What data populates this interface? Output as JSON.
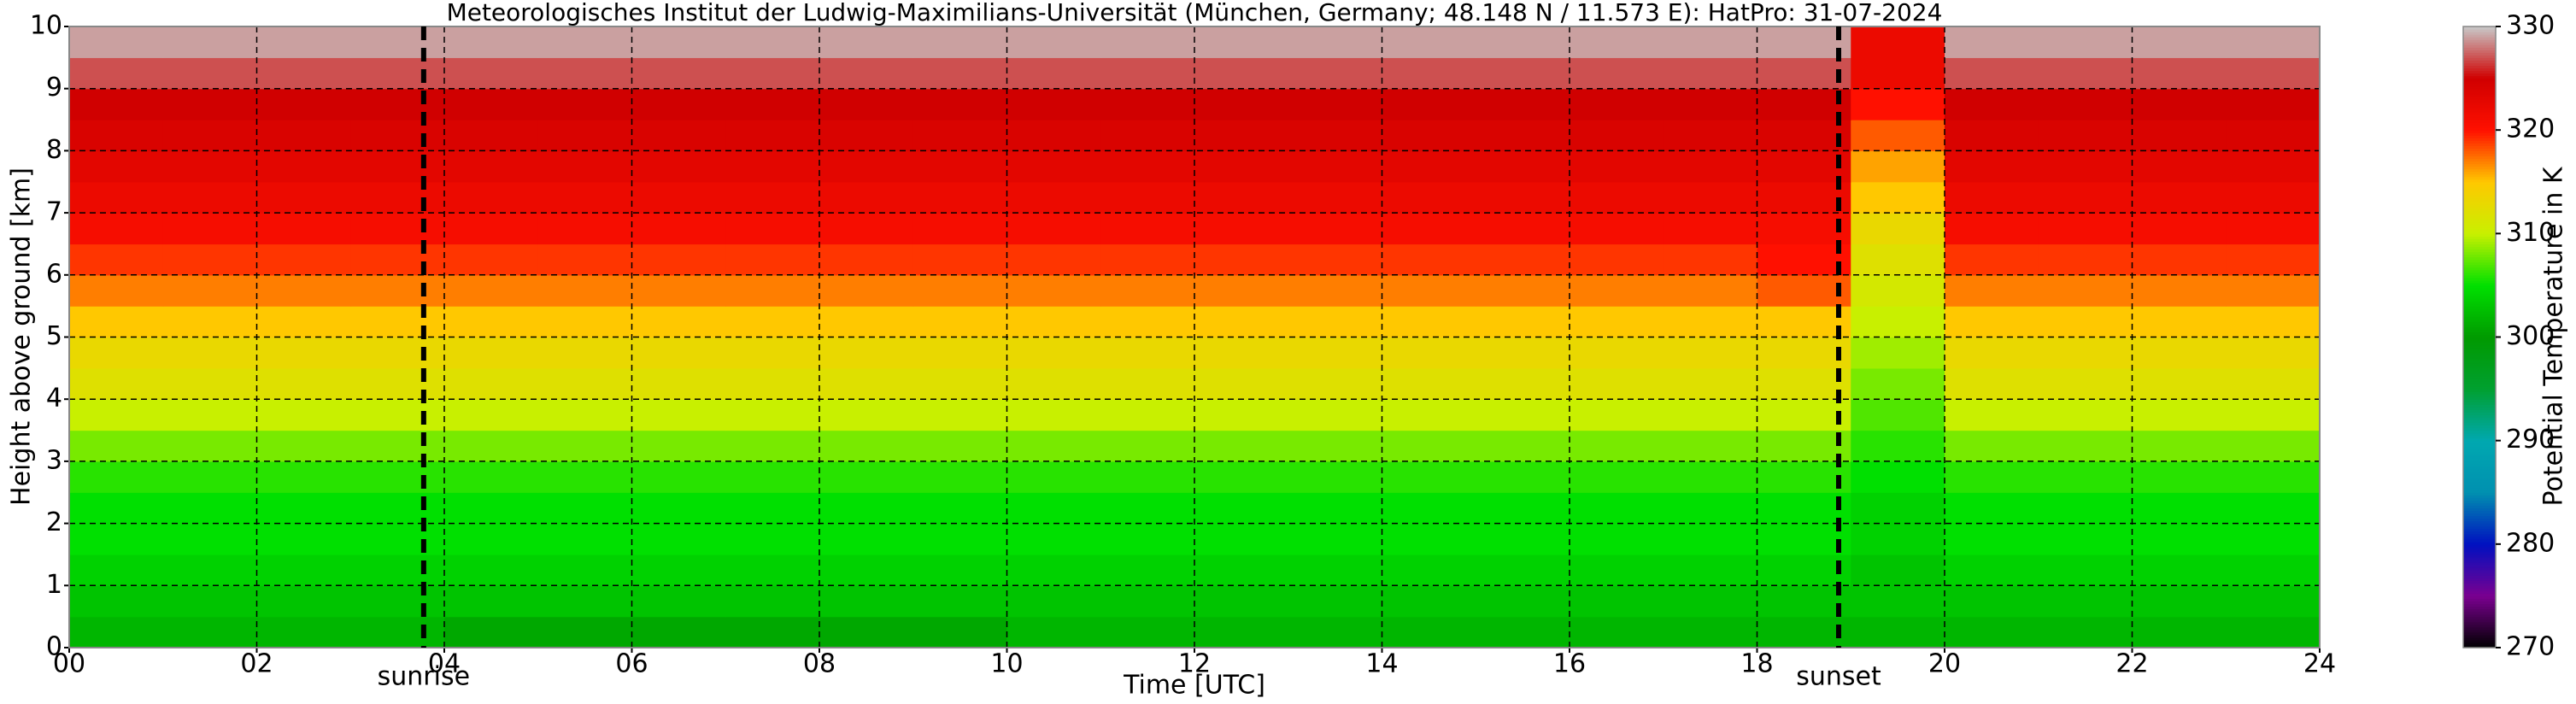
{
  "chart_data": {
    "type": "heatmap",
    "title": "Meteorologisches Institut der Ludwig-Maximilians-Universität (München, Germany; 48.148 N / 11.573 E):    HatPro: 31-07-2024",
    "x_label": "Time [UTC]",
    "y_label": "Height above ground [km]",
    "colorbar_label": "Potential Temperature in K",
    "x_edges": [
      0,
      1,
      2,
      3,
      4,
      5,
      6,
      7,
      8,
      9,
      10,
      11,
      12,
      13,
      14,
      15,
      16,
      17,
      18,
      19,
      20,
      21,
      22,
      23,
      24
    ],
    "y_edges": [
      0,
      0.5,
      1,
      1.5,
      2,
      2.5,
      3,
      3.5,
      4,
      4.5,
      5,
      5.5,
      6,
      6.5,
      7,
      7.5,
      8,
      8.5,
      9,
      9.5,
      10
    ],
    "z": [
      [
        302,
        302,
        302,
        302,
        301,
        301,
        301,
        301,
        301,
        301,
        302,
        302,
        302,
        302,
        302,
        302,
        302,
        302,
        302,
        302,
        302,
        302,
        302,
        302
      ],
      [
        303,
        303,
        303,
        303,
        303,
        303,
        303,
        303,
        303,
        303,
        303,
        303,
        303,
        303,
        303,
        303,
        303,
        303,
        303,
        303,
        303,
        303,
        303,
        303
      ],
      [
        304,
        304,
        304,
        304,
        304,
        304,
        304,
        304,
        304,
        304,
        304,
        304,
        304,
        304,
        304,
        304,
        304,
        304,
        304,
        303,
        304,
        304,
        304,
        304
      ],
      [
        305,
        305,
        305,
        305,
        305,
        305,
        305,
        305,
        305,
        305,
        305,
        305,
        305,
        305,
        305,
        305,
        305,
        305,
        305,
        304,
        305,
        305,
        305,
        305
      ],
      [
        305,
        305,
        305,
        305,
        305,
        305,
        305,
        305,
        305,
        305,
        305,
        305,
        305,
        305,
        305,
        305,
        305,
        305,
        305,
        304,
        305,
        305,
        305,
        305
      ],
      [
        306,
        306,
        306,
        306,
        306,
        306,
        306,
        306,
        306,
        306,
        306,
        306,
        306,
        306,
        306,
        306,
        306,
        306,
        306,
        305,
        306,
        306,
        306,
        306
      ],
      [
        308,
        308,
        308,
        308,
        308,
        308,
        308,
        308,
        308,
        308,
        308,
        308,
        308,
        308,
        308,
        308,
        308,
        308,
        308,
        306,
        308,
        308,
        308,
        308
      ],
      [
        310,
        310,
        310,
        310,
        310,
        310,
        310,
        310,
        310,
        310,
        310,
        310,
        310,
        310,
        310,
        310,
        310,
        310,
        310,
        307,
        310,
        310,
        310,
        310
      ],
      [
        312,
        312,
        312,
        312,
        312,
        312,
        312,
        312,
        312,
        312,
        312,
        312,
        312,
        312,
        312,
        312,
        312,
        312,
        312,
        308,
        312,
        312,
        312,
        312
      ],
      [
        313,
        313,
        313,
        313,
        313,
        313,
        313,
        313,
        313,
        313,
        313,
        313,
        313,
        313,
        313,
        313,
        313,
        313,
        313,
        309,
        313,
        313,
        313,
        313
      ],
      [
        315,
        315,
        315,
        315,
        315,
        315,
        315,
        315,
        315,
        315,
        315,
        315,
        315,
        315,
        315,
        315,
        315,
        315,
        315,
        310,
        315,
        315,
        315,
        315
      ],
      [
        317,
        317,
        317,
        317,
        317,
        317,
        317,
        317,
        317,
        317,
        317,
        317,
        317,
        317,
        317,
        317,
        317,
        317,
        318,
        311,
        317,
        317,
        317,
        317
      ],
      [
        319,
        319,
        319,
        319,
        319,
        319,
        319,
        319,
        319,
        319,
        319,
        319,
        319,
        319,
        319,
        319,
        319,
        319,
        320,
        312,
        319,
        319,
        319,
        319
      ],
      [
        321,
        321,
        321,
        321,
        321,
        321,
        321,
        321,
        321,
        321,
        321,
        321,
        321,
        321,
        321,
        321,
        321,
        321,
        321,
        313,
        321,
        321,
        321,
        321
      ],
      [
        322,
        322,
        322,
        322,
        322,
        322,
        322,
        322,
        322,
        322,
        322,
        322,
        322,
        322,
        322,
        322,
        322,
        322,
        322,
        315,
        322,
        322,
        322,
        322
      ],
      [
        323,
        323,
        323,
        323,
        323,
        323,
        323,
        323,
        323,
        323,
        323,
        323,
        323,
        323,
        323,
        323,
        323,
        323,
        323,
        316,
        323,
        323,
        323,
        323
      ],
      [
        324,
        324,
        324,
        324,
        324,
        324,
        324,
        324,
        324,
        324,
        324,
        324,
        324,
        324,
        324,
        324,
        324,
        324,
        324,
        318,
        324,
        324,
        324,
        324
      ],
      [
        325,
        325,
        325,
        325,
        325,
        325,
        325,
        325,
        325,
        325,
        325,
        325,
        325,
        325,
        325,
        325,
        325,
        325,
        325,
        320,
        325,
        325,
        325,
        325
      ],
      [
        327,
        327,
        327,
        327,
        327,
        327,
        327,
        327,
        327,
        327,
        327,
        327,
        327,
        327,
        327,
        327,
        327,
        327,
        327,
        322,
        327,
        327,
        327,
        327
      ],
      [
        329,
        329,
        329,
        329,
        329,
        329,
        329,
        329,
        329,
        329,
        329,
        329,
        329,
        329,
        329,
        329,
        329,
        329,
        329,
        322,
        329,
        329,
        329,
        329
      ]
    ],
    "xlim": [
      0,
      24
    ],
    "xticks": [
      {
        "value": 0,
        "label": "00"
      },
      {
        "value": 2,
        "label": "02"
      },
      {
        "value": 4,
        "label": "04"
      },
      {
        "value": 6,
        "label": "06"
      },
      {
        "value": 8,
        "label": "08"
      },
      {
        "value": 10,
        "label": "10"
      },
      {
        "value": 12,
        "label": "12"
      },
      {
        "value": 14,
        "label": "14"
      },
      {
        "value": 16,
        "label": "16"
      },
      {
        "value": 18,
        "label": "18"
      },
      {
        "value": 20,
        "label": "20"
      },
      {
        "value": 22,
        "label": "22"
      },
      {
        "value": 24,
        "label": "24"
      }
    ],
    "ylim": [
      0,
      10
    ],
    "yticks": [
      0,
      1,
      2,
      3,
      4,
      5,
      6,
      7,
      8,
      9,
      10
    ],
    "zlim": [
      270,
      330
    ],
    "zticks": [
      270,
      280,
      290,
      300,
      310,
      320,
      330
    ],
    "colormap": [
      "#000000",
      "#7a0090",
      "#0010c0",
      "#0090b0",
      "#00a8b0",
      "#00a030",
      "#009a00",
      "#00e000",
      "#c8f000",
      "#ffc800",
      "#ff1000",
      "#d00000",
      "#c8c8c8"
    ],
    "grid": true,
    "annotations": [
      {
        "label": "sunrise",
        "x": 3.78
      },
      {
        "label": "sunset",
        "x": 18.87
      }
    ]
  }
}
